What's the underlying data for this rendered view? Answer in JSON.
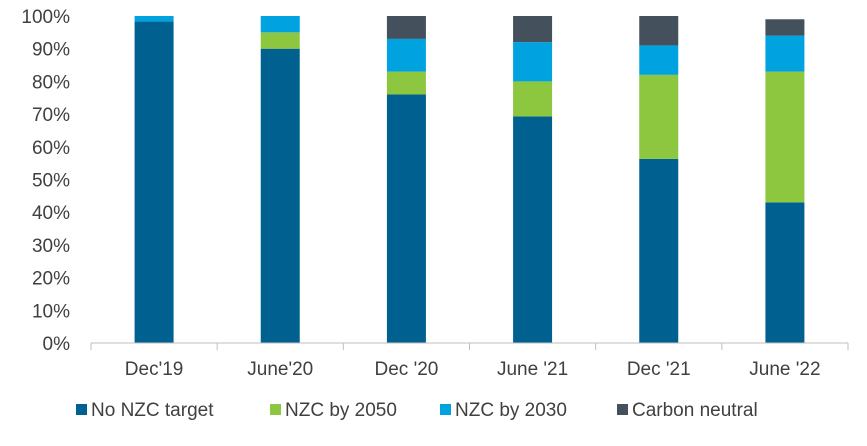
{
  "chart_data": {
    "type": "bar",
    "stacked": true,
    "title": "",
    "xlabel": "",
    "ylabel": "",
    "ylim": [
      0,
      100
    ],
    "yticks": [
      "0%",
      "10%",
      "20%",
      "30%",
      "40%",
      "50%",
      "60%",
      "70%",
      "80%",
      "90%",
      "100%"
    ],
    "grid": false,
    "legend_position": "bottom",
    "categories": [
      "Dec'19",
      "June'20",
      "Dec '20",
      "June '21",
      "Dec '21",
      "June '22"
    ],
    "series": [
      {
        "name": "No NZC target",
        "color": "#006191",
        "values": [
          98.3,
          90,
          76,
          69.3,
          56.3,
          43
        ]
      },
      {
        "name": "NZC by 2050",
        "color": "#8DC63F",
        "values": [
          0,
          5,
          7,
          10.7,
          25.7,
          40
        ]
      },
      {
        "name": "NZC by 2030",
        "color": "#00A3E0",
        "values": [
          1.7,
          5,
          10,
          12,
          9,
          11
        ]
      },
      {
        "name": "Carbon neutral",
        "color": "#44505C",
        "values": [
          0,
          0,
          7,
          8,
          9,
          5
        ]
      }
    ]
  }
}
